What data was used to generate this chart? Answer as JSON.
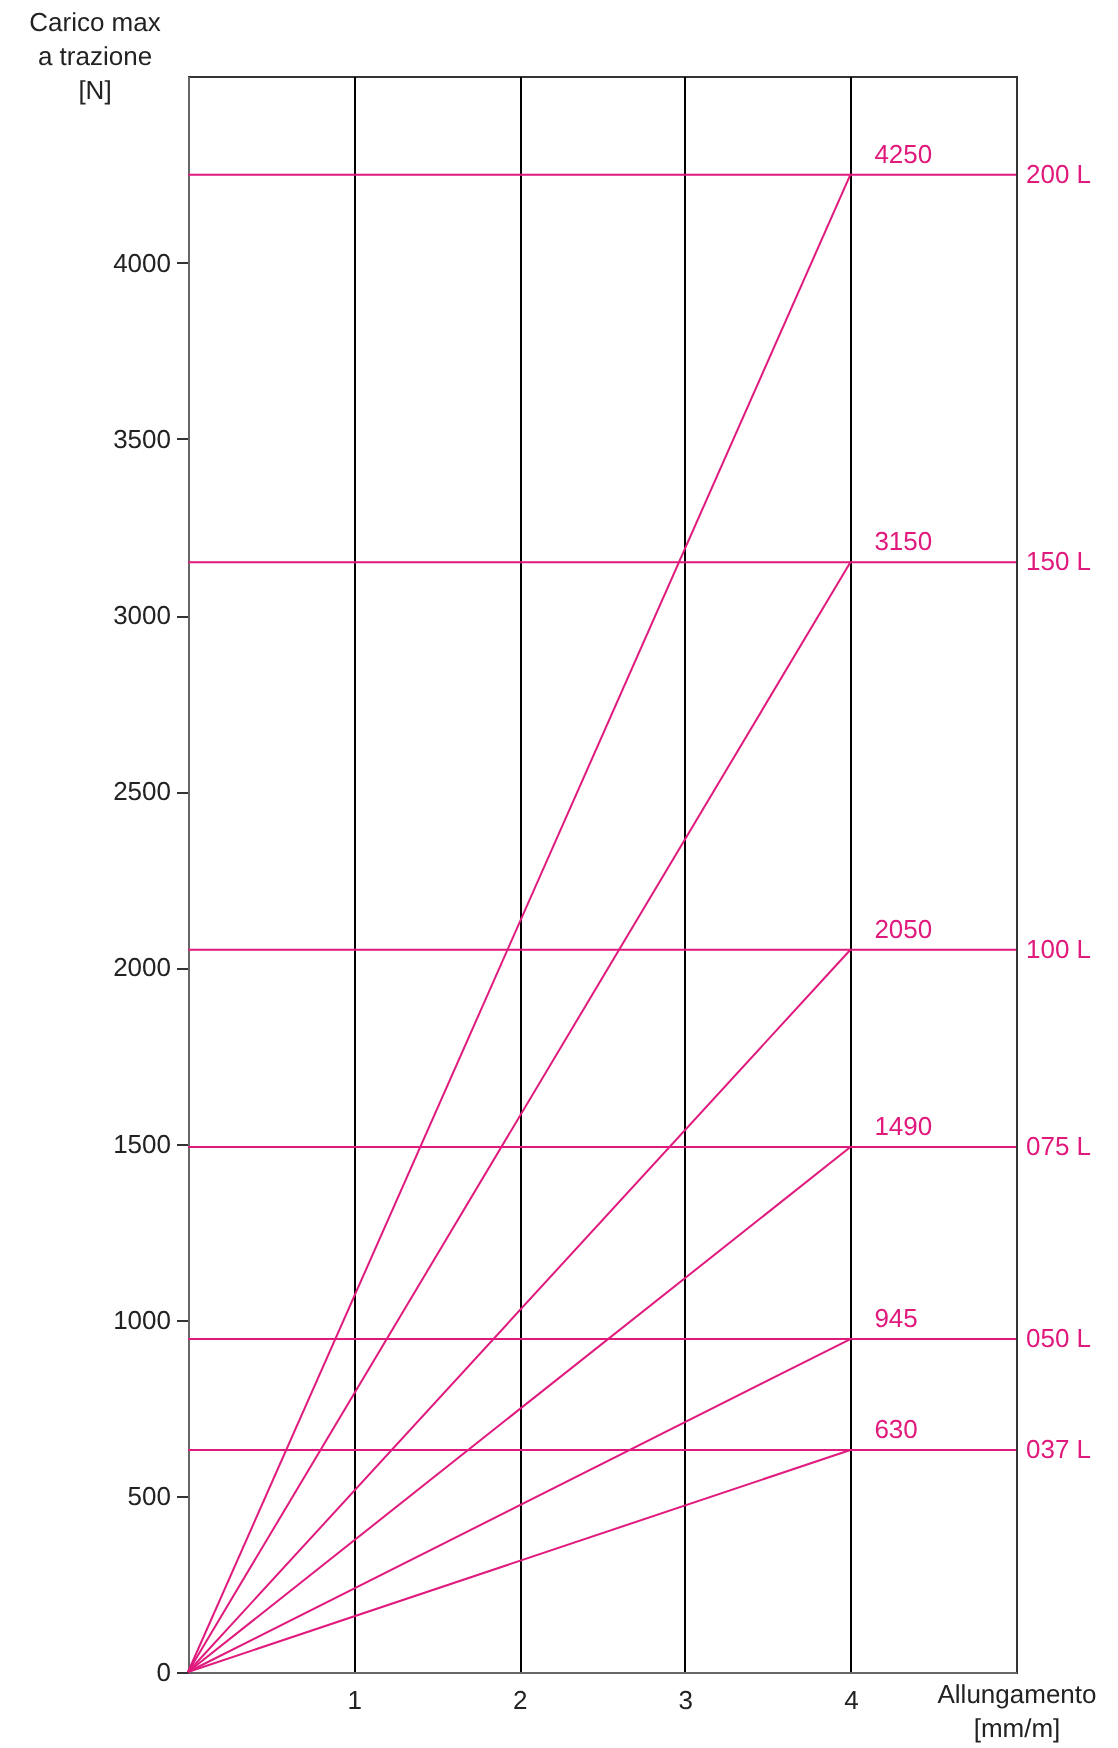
{
  "chart_data": {
    "type": "line",
    "xlabel": "Allungamento\n[mm/m]",
    "ylabel": "Carico max\na trazione\n[N]",
    "x": [
      0,
      4
    ],
    "series": [
      {
        "color": "#e0197d",
        "values": [
          0,
          630
        ],
        "value_labels": [
          null,
          "630"
        ]
      },
      {
        "color": "#e0197d",
        "values": [
          0,
          945
        ],
        "value_labels": [
          null,
          "945"
        ]
      },
      {
        "color": "#e0197d",
        "values": [
          0,
          1490
        ],
        "value_labels": [
          null,
          "1490"
        ]
      },
      {
        "color": "#e0197d",
        "values": [
          0,
          2050
        ],
        "value_labels": [
          null,
          "2050"
        ]
      },
      {
        "color": "#e0197d",
        "values": [
          0,
          3150
        ],
        "value_labels": [
          null,
          "3150"
        ]
      },
      {
        "color": "#e0197d",
        "values": [
          0,
          4250
        ],
        "value_labels": [
          null,
          "4250"
        ]
      }
    ],
    "ref_lines": [
      {
        "axis": "y",
        "value": 630,
        "label": "037 L",
        "color": "#e0197d"
      },
      {
        "axis": "y",
        "value": 945,
        "label": "050 L",
        "color": "#e0197d"
      },
      {
        "axis": "y",
        "value": 1490,
        "label": "075 L",
        "color": "#e0197d"
      },
      {
        "axis": "y",
        "value": 2050,
        "label": "100 L",
        "color": "#e0197d"
      },
      {
        "axis": "y",
        "value": 3150,
        "label": "150 L",
        "color": "#e0197d"
      },
      {
        "axis": "y",
        "value": 4250,
        "label": "200 L",
        "color": "#e0197d"
      }
    ],
    "xlim": [
      0,
      5
    ],
    "xticks": [
      1,
      2,
      3,
      4
    ],
    "ylim": [
      0,
      4530
    ],
    "yticks": [
      0,
      500,
      1000,
      1500,
      2000,
      2500,
      3000,
      3500,
      4000
    ],
    "grid": "x",
    "legend": false,
    "marker": "none",
    "line_style": "solid"
  }
}
